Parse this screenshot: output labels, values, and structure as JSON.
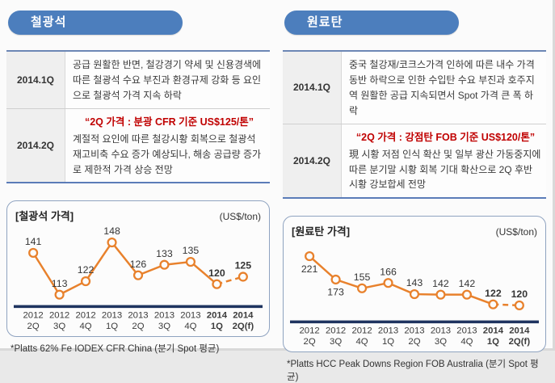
{
  "colors": {
    "accent_orange": "#E8812C",
    "header_blue": "#4C7EBD",
    "table_border_blue": "#5B7CB8",
    "axis_navy": "#1F3460",
    "box_border": "#8FA3C0",
    "highlight_red": "#C00000",
    "text_dark": "#3A3A3A"
  },
  "left_panel": {
    "header_label": "철광석",
    "rows": [
      {
        "period": "2014.1Q",
        "body": "공급 원활한 반면, 철강경기 약세 및 신용경색에 따른 철광석 수요 부진과 환경규제 강화 등 요인으로 철광석 가격 지속 하락"
      },
      {
        "period": "2014.2Q",
        "title": "“2Q 가격 : 분광 CFR 기준 US$125/톤”",
        "body": "계절적 요인에 따른 철강시황 회복으로 철광석 재고비축 수요 증가 예상되나, 해송 공급량 증가로 제한적 가격 상승 전망"
      }
    ]
  },
  "right_panel": {
    "header_label": "원료탄",
    "rows": [
      {
        "period": "2014.1Q",
        "body": "중국 철강재/코크스가격 인하에 따른 내수 가격 동반 하락으로 인한 수입탄 수요 부진과 호주지역 원활한 공급 지속되면서 Spot 가격 큰 폭 하락"
      },
      {
        "period": "2014.2Q",
        "title": "“2Q 가격 : 강점탄 FOB 기준 US$120/톤”",
        "body": "現 시황 저점 인식 확산 및 일부 광산 가동중지에 따른 분기말 시황 회복 기대 확산으로 2Q 후반 시황 강보합세 전망"
      }
    ]
  },
  "chart_data": [
    {
      "type": "line",
      "title": "[철광석 가격]",
      "unit_label": "(US$/ton)",
      "categories": [
        [
          "2012",
          "2Q"
        ],
        [
          "2012",
          "3Q"
        ],
        [
          "2012",
          "4Q"
        ],
        [
          "2013",
          "1Q"
        ],
        [
          "2013",
          "2Q"
        ],
        [
          "2013",
          "3Q"
        ],
        [
          "2013",
          "4Q"
        ],
        [
          "2014",
          "1Q"
        ],
        [
          "2014",
          "2Q(f)"
        ]
      ],
      "values": [
        141,
        113,
        122,
        148,
        126,
        133,
        135,
        120,
        125
      ],
      "ylim": [
        106,
        152
      ],
      "grid": false,
      "legend": "none",
      "dashed_last_segment": true,
      "bold_from_index": 7,
      "labels_below": [],
      "line_color": "#E8812C",
      "footnote": "*Platts 62% Fe IODEX CFR China (분기 Spot 평균)"
    },
    {
      "type": "line",
      "title": "[원료탄 가격]",
      "unit_label": "(US$/ton)",
      "categories": [
        [
          "2012",
          "2Q"
        ],
        [
          "2012",
          "3Q"
        ],
        [
          "2012",
          "4Q"
        ],
        [
          "2013",
          "1Q"
        ],
        [
          "2013",
          "2Q"
        ],
        [
          "2013",
          "3Q"
        ],
        [
          "2013",
          "4Q"
        ],
        [
          "2014",
          "1Q"
        ],
        [
          "2014",
          "2Q(f)"
        ]
      ],
      "values": [
        221,
        173,
        155,
        166,
        143,
        142,
        142,
        122,
        120
      ],
      "ylim": [
        89,
        230
      ],
      "grid": false,
      "legend": "none",
      "dashed_last_segment": true,
      "bold_from_index": 7,
      "labels_below": [
        0,
        1
      ],
      "line_color": "#E8812C",
      "footnote": "*Platts HCC Peak Downs Region FOB Australia (분기 Spot 평균)"
    }
  ]
}
